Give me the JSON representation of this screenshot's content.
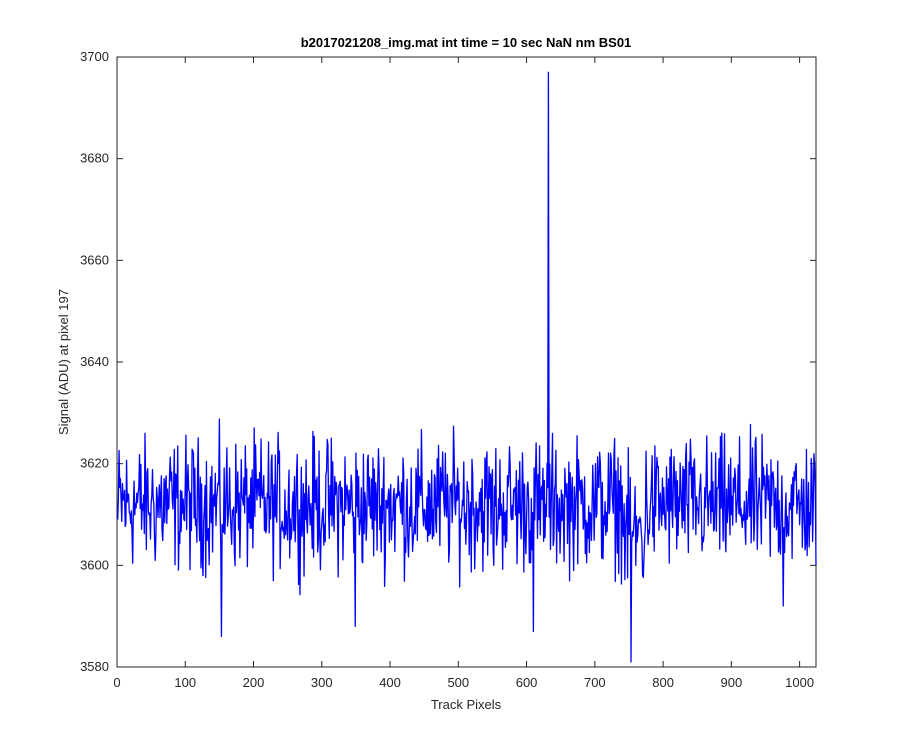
{
  "chart_data": {
    "type": "line",
    "title": "b2017021208_img.mat int time = 10 sec  NaN nm BS01",
    "xlabel": "Track Pixels",
    "ylabel": "Signal (ADU) at pixel 197",
    "xlim": [
      0,
      1024
    ],
    "ylim": [
      3580,
      3700
    ],
    "xticks": [
      0,
      100,
      200,
      300,
      400,
      500,
      600,
      700,
      800,
      900,
      1000
    ],
    "yticks": [
      3580,
      3600,
      3620,
      3640,
      3660,
      3680,
      3700
    ],
    "grid": false,
    "legend": "none",
    "line_color": "#0000ff",
    "series": [
      {
        "x": [
          1,
          50,
          100,
          153,
          200,
          250,
          300,
          349,
          400,
          450,
          500,
          552,
          600,
          610,
          620,
          628,
          632,
          636,
          640,
          650,
          700,
          753,
          760,
          770,
          800,
          850,
          900,
          976,
          1000,
          1024
        ],
        "y": [
          3609,
          3612,
          3616,
          3586,
          3611,
          3605,
          3608,
          3588,
          3614,
          3611,
          3613,
          3600,
          3609,
          3587,
          3606,
          3612,
          3697,
          3611,
          3605,
          3608,
          3612,
          3581,
          3600,
          3598,
          3610,
          3611,
          3610,
          3592,
          3608,
          3600
        ]
      }
    ]
  }
}
